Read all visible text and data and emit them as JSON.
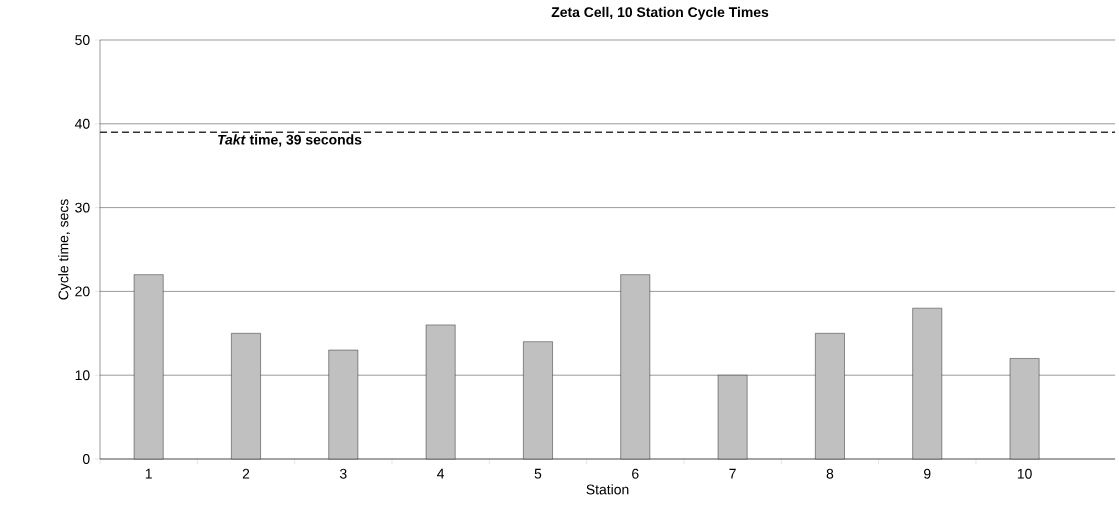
{
  "chart_data": {
    "type": "bar",
    "title": "Zeta Cell, 10 Station Cycle Times",
    "xlabel": "Station",
    "ylabel": "Cycle time, secs",
    "categories": [
      "1",
      "2",
      "3",
      "4",
      "5",
      "6",
      "7",
      "8",
      "9",
      "10"
    ],
    "values": [
      22,
      15,
      13,
      16,
      14,
      22,
      10,
      15,
      18,
      12
    ],
    "color": "#c0c0c0",
    "ylim": [
      0,
      50
    ],
    "yticks": [
      0,
      10,
      20,
      30,
      40,
      50
    ],
    "grid": "y",
    "ref_lines": [
      {
        "axis": "y",
        "value": 39,
        "label": "*Takt* time, 39 seconds",
        "line_style": "dashed",
        "color": "#333333"
      }
    ]
  }
}
